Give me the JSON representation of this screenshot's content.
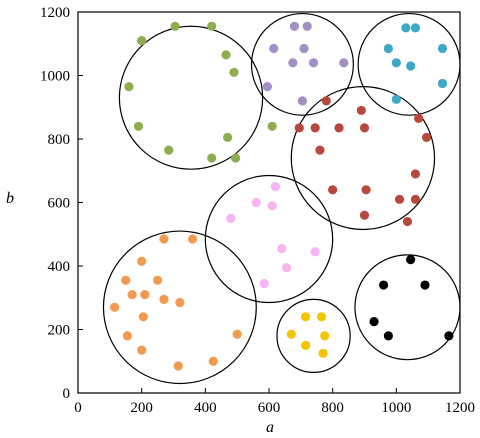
{
  "chart_data": {
    "type": "scatter",
    "xlabel": "a",
    "ylabel": "b",
    "xlim": [
      0,
      1200
    ],
    "ylim": [
      0,
      1200
    ],
    "xticks": [
      0,
      200,
      400,
      600,
      800,
      1000,
      1200
    ],
    "yticks": [
      0,
      200,
      400,
      600,
      800,
      1000,
      1200
    ],
    "grid": false,
    "circles": [
      {
        "color": "#000000",
        "cx": 355,
        "cy": 930,
        "r": 225
      },
      {
        "color": "#000000",
        "cx": 705,
        "cy": 1035,
        "r": 160
      },
      {
        "color": "#000000",
        "cx": 1040,
        "cy": 1035,
        "r": 160
      },
      {
        "color": "#000000",
        "cx": 895,
        "cy": 740,
        "r": 225
      },
      {
        "color": "#000000",
        "cx": 600,
        "cy": 485,
        "r": 200
      },
      {
        "color": "#000000",
        "cx": 320,
        "cy": 270,
        "r": 240
      },
      {
        "color": "#000000",
        "cx": 740,
        "cy": 180,
        "r": 115
      },
      {
        "color": "#000000",
        "cx": 1035,
        "cy": 270,
        "r": 165
      }
    ],
    "series": [
      {
        "color": "#8dae4f",
        "x": [
          305,
          420,
          200,
          465,
          160,
          490,
          610,
          190,
          285,
          420,
          470,
          495
        ],
        "y": [
          1155,
          1155,
          1110,
          1065,
          965,
          1010,
          840,
          840,
          765,
          740,
          805,
          740
        ]
      },
      {
        "color": "#a390c3",
        "x": [
          680,
          720,
          615,
          710,
          675,
          740,
          835,
          595,
          705
        ],
        "y": [
          1155,
          1155,
          1085,
          1085,
          1040,
          1040,
          1040,
          965,
          920
        ]
      },
      {
        "color": "#3fa9c5",
        "x": [
          1030,
          1060,
          975,
          1145,
          1000,
          1045,
          1145,
          1000
        ],
        "y": [
          1150,
          1150,
          1085,
          1085,
          1040,
          1030,
          975,
          925
        ]
      },
      {
        "color": "#b8473c",
        "x": [
          780,
          890,
          695,
          745,
          820,
          900,
          1070,
          1095,
          760,
          1060,
          800,
          905,
          1010,
          1060,
          900,
          1035
        ],
        "y": [
          920,
          890,
          835,
          835,
          835,
          835,
          865,
          805,
          765,
          690,
          640,
          640,
          610,
          610,
          560,
          540
        ]
      },
      {
        "color": "#f7b4f2",
        "x": [
          620,
          560,
          610,
          480,
          640,
          745,
          655,
          585
        ],
        "y": [
          650,
          600,
          590,
          550,
          455,
          445,
          395,
          345
        ]
      },
      {
        "color": "#f29b50",
        "x": [
          270,
          360,
          200,
          150,
          320,
          170,
          210,
          250,
          270,
          115,
          205,
          500,
          155,
          200,
          425,
          315
        ],
        "y": [
          485,
          485,
          415,
          355,
          285,
          310,
          310,
          355,
          295,
          270,
          240,
          185,
          180,
          135,
          100,
          85
        ]
      },
      {
        "color": "#f5c400",
        "x": [
          715,
          765,
          670,
          775,
          715,
          770
        ],
        "y": [
          240,
          240,
          185,
          180,
          150,
          125
        ]
      },
      {
        "color": "#000000",
        "x": [
          1045,
          960,
          1090,
          930,
          975,
          1165
        ],
        "y": [
          420,
          340,
          340,
          225,
          180,
          180
        ]
      }
    ]
  }
}
